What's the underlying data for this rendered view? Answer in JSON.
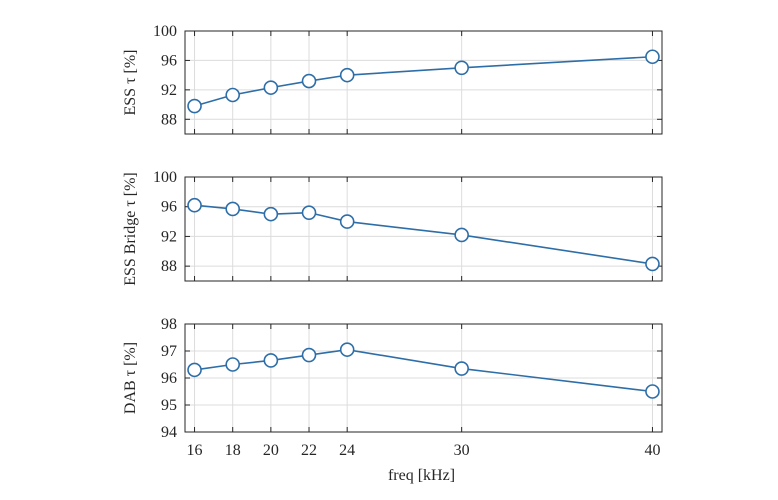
{
  "chart_data": [
    {
      "type": "line",
      "x": [
        16,
        18,
        20,
        22,
        24,
        30,
        40
      ],
      "xticks": [
        16,
        18,
        20,
        22,
        24,
        30,
        40
      ],
      "xlim": [
        15.5,
        40.5
      ],
      "ylim": [
        86,
        100
      ],
      "yticks": [
        88,
        92,
        96,
        100
      ],
      "ylabel": "ESS τ [%]",
      "xlabel": "",
      "grid": true,
      "series": [
        {
          "values": [
            89.8,
            91.3,
            92.3,
            93.2,
            94.0,
            95.0,
            96.5
          ]
        }
      ]
    },
    {
      "type": "line",
      "x": [
        16,
        18,
        20,
        22,
        24,
        30,
        40
      ],
      "xticks": [
        16,
        18,
        20,
        22,
        24,
        30,
        40
      ],
      "xlim": [
        15.5,
        40.5
      ],
      "ylim": [
        86,
        100
      ],
      "yticks": [
        88,
        92,
        96,
        100
      ],
      "ylabel": "ESS Bridge τ [%]",
      "xlabel": "",
      "grid": true,
      "series": [
        {
          "values": [
            96.2,
            95.7,
            95.0,
            95.2,
            94.0,
            92.2,
            88.3
          ]
        }
      ]
    },
    {
      "type": "line",
      "x": [
        16,
        18,
        20,
        22,
        24,
        30,
        40
      ],
      "xticks": [
        16,
        18,
        20,
        22,
        24,
        30,
        40
      ],
      "xlim": [
        15.5,
        40.5
      ],
      "ylim": [
        94,
        98
      ],
      "yticks": [
        94,
        95,
        96,
        97,
        98
      ],
      "ylabel": "DAB τ [%]",
      "xlabel": "freq [kHz]",
      "grid": true,
      "series": [
        {
          "values": [
            96.3,
            96.5,
            96.65,
            96.85,
            97.05,
            96.35,
            95.5
          ]
        }
      ]
    }
  ],
  "colors": {
    "series": "#2e6ea8",
    "grid": "#dcdcdc",
    "axis": "#262626"
  }
}
